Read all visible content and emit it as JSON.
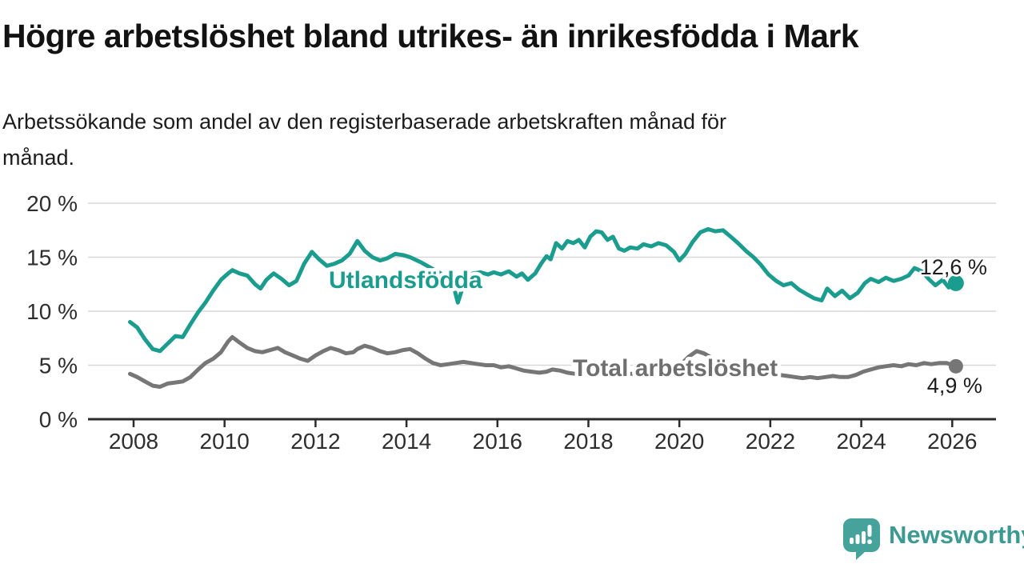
{
  "header": {
    "title": "Högre arbetslöshet bland utrikes- än inrikesfödda i Mark",
    "subtitle": "Arbetssökande som andel av den registerbaserade arbetskraften månad för månad.",
    "subtitle_lines": [
      "Arbetssökande som andel av den registerbaserade arbetskraften månad för",
      "månad."
    ]
  },
  "chart_data": {
    "type": "line",
    "unit": "%",
    "ylim": [
      0,
      20
    ],
    "xlim": [
      2007.5,
      2026.9
    ],
    "grid": "horizontal",
    "legend_position": "inline-labels",
    "y_ticks": [
      {
        "value": 0,
        "label": "0 %"
      },
      {
        "value": 5,
        "label": "5 %"
      },
      {
        "value": 10,
        "label": "10 %"
      },
      {
        "value": 15,
        "label": "15 %"
      },
      {
        "value": 20,
        "label": "20 %"
      }
    ],
    "x_ticks": [
      {
        "value": 2008,
        "label": "2008"
      },
      {
        "value": 2010,
        "label": "2010"
      },
      {
        "value": 2012,
        "label": "2012"
      },
      {
        "value": 2014,
        "label": "2014"
      },
      {
        "value": 2016,
        "label": "2016"
      },
      {
        "value": 2018,
        "label": "2018"
      },
      {
        "value": 2020,
        "label": "2020"
      },
      {
        "value": 2022,
        "label": "2022"
      },
      {
        "value": 2024,
        "label": "2024"
      },
      {
        "value": 2026,
        "label": "2026"
      }
    ],
    "series": [
      {
        "key": "utlandsfodda",
        "name": "Utlandsfödda",
        "color": "#1a9c8e",
        "end_label": "12,6 %",
        "end_value": 12.6,
        "points": [
          [
            2007.92,
            9.0
          ],
          [
            2008.08,
            8.5
          ],
          [
            2008.25,
            7.4
          ],
          [
            2008.42,
            6.5
          ],
          [
            2008.58,
            6.3
          ],
          [
            2008.75,
            7.0
          ],
          [
            2008.92,
            7.7
          ],
          [
            2009.08,
            7.6
          ],
          [
            2009.25,
            8.8
          ],
          [
            2009.42,
            9.9
          ],
          [
            2009.58,
            10.8
          ],
          [
            2009.75,
            11.9
          ],
          [
            2009.92,
            12.9
          ],
          [
            2010.08,
            13.5
          ],
          [
            2010.17,
            13.8
          ],
          [
            2010.33,
            13.5
          ],
          [
            2010.5,
            13.3
          ],
          [
            2010.67,
            12.5
          ],
          [
            2010.79,
            12.1
          ],
          [
            2010.92,
            12.9
          ],
          [
            2011.08,
            13.5
          ],
          [
            2011.25,
            13.0
          ],
          [
            2011.42,
            12.4
          ],
          [
            2011.58,
            12.8
          ],
          [
            2011.75,
            14.4
          ],
          [
            2011.92,
            15.5
          ],
          [
            2012.08,
            14.8
          ],
          [
            2012.25,
            14.2
          ],
          [
            2012.42,
            14.4
          ],
          [
            2012.58,
            14.7
          ],
          [
            2012.75,
            15.3
          ],
          [
            2012.92,
            16.5
          ],
          [
            2013.08,
            15.6
          ],
          [
            2013.25,
            15.0
          ],
          [
            2013.42,
            14.7
          ],
          [
            2013.58,
            14.9
          ],
          [
            2013.75,
            15.3
          ],
          [
            2013.92,
            15.2
          ],
          [
            2014.08,
            15.0
          ],
          [
            2014.33,
            14.5
          ],
          [
            2014.58,
            13.9
          ],
          [
            2014.83,
            13.3
          ],
          [
            2015.0,
            12.9
          ],
          [
            2015.13,
            10.8
          ],
          [
            2015.29,
            12.9
          ],
          [
            2015.46,
            13.5
          ],
          [
            2015.63,
            13.6
          ],
          [
            2015.79,
            13.4
          ],
          [
            2015.92,
            13.6
          ],
          [
            2016.08,
            13.4
          ],
          [
            2016.25,
            13.7
          ],
          [
            2016.42,
            13.2
          ],
          [
            2016.54,
            13.5
          ],
          [
            2016.67,
            12.9
          ],
          [
            2016.83,
            13.5
          ],
          [
            2016.96,
            14.4
          ],
          [
            2017.08,
            15.1
          ],
          [
            2017.17,
            14.8
          ],
          [
            2017.29,
            16.3
          ],
          [
            2017.42,
            15.8
          ],
          [
            2017.54,
            16.5
          ],
          [
            2017.67,
            16.3
          ],
          [
            2017.79,
            16.6
          ],
          [
            2017.92,
            15.9
          ],
          [
            2018.04,
            16.9
          ],
          [
            2018.17,
            17.4
          ],
          [
            2018.29,
            17.3
          ],
          [
            2018.42,
            16.6
          ],
          [
            2018.54,
            16.9
          ],
          [
            2018.67,
            15.8
          ],
          [
            2018.79,
            15.6
          ],
          [
            2018.92,
            15.9
          ],
          [
            2019.08,
            15.8
          ],
          [
            2019.21,
            16.2
          ],
          [
            2019.38,
            16.0
          ],
          [
            2019.54,
            16.3
          ],
          [
            2019.71,
            16.1
          ],
          [
            2019.88,
            15.5
          ],
          [
            2020.0,
            14.7
          ],
          [
            2020.13,
            15.3
          ],
          [
            2020.29,
            16.4
          ],
          [
            2020.46,
            17.3
          ],
          [
            2020.63,
            17.6
          ],
          [
            2020.79,
            17.4
          ],
          [
            2020.96,
            17.5
          ],
          [
            2021.13,
            16.9
          ],
          [
            2021.29,
            16.3
          ],
          [
            2021.46,
            15.6
          ],
          [
            2021.63,
            15.0
          ],
          [
            2021.79,
            14.3
          ],
          [
            2021.96,
            13.4
          ],
          [
            2022.13,
            12.8
          ],
          [
            2022.29,
            12.4
          ],
          [
            2022.46,
            12.6
          ],
          [
            2022.63,
            12.0
          ],
          [
            2022.79,
            11.6
          ],
          [
            2022.96,
            11.2
          ],
          [
            2023.13,
            11.0
          ],
          [
            2023.25,
            12.1
          ],
          [
            2023.42,
            11.4
          ],
          [
            2023.58,
            11.9
          ],
          [
            2023.75,
            11.2
          ],
          [
            2023.92,
            11.7
          ],
          [
            2024.08,
            12.6
          ],
          [
            2024.21,
            13.0
          ],
          [
            2024.38,
            12.7
          ],
          [
            2024.54,
            13.1
          ],
          [
            2024.71,
            12.8
          ],
          [
            2024.88,
            13.0
          ],
          [
            2025.04,
            13.3
          ],
          [
            2025.17,
            14.0
          ],
          [
            2025.33,
            13.7
          ],
          [
            2025.5,
            12.9
          ],
          [
            2025.63,
            12.4
          ],
          [
            2025.79,
            12.9
          ],
          [
            2025.92,
            12.2
          ],
          [
            2026.08,
            12.6
          ]
        ]
      },
      {
        "key": "total-arbetsloshet",
        "name": "Total arbetslöshet",
        "color": "#767676",
        "label_color": "#6f6f6f",
        "end_label": "4,9 %",
        "end_value": 4.9,
        "points": [
          [
            2007.92,
            4.2
          ],
          [
            2008.08,
            3.9
          ],
          [
            2008.25,
            3.5
          ],
          [
            2008.42,
            3.1
          ],
          [
            2008.58,
            3.0
          ],
          [
            2008.75,
            3.3
          ],
          [
            2008.92,
            3.4
          ],
          [
            2009.08,
            3.5
          ],
          [
            2009.25,
            3.9
          ],
          [
            2009.42,
            4.6
          ],
          [
            2009.58,
            5.2
          ],
          [
            2009.75,
            5.6
          ],
          [
            2009.92,
            6.2
          ],
          [
            2010.08,
            7.2
          ],
          [
            2010.17,
            7.6
          ],
          [
            2010.33,
            7.1
          ],
          [
            2010.5,
            6.6
          ],
          [
            2010.67,
            6.3
          ],
          [
            2010.83,
            6.2
          ],
          [
            2011.0,
            6.4
          ],
          [
            2011.17,
            6.6
          ],
          [
            2011.33,
            6.2
          ],
          [
            2011.5,
            5.9
          ],
          [
            2011.67,
            5.6
          ],
          [
            2011.83,
            5.4
          ],
          [
            2012.0,
            5.9
          ],
          [
            2012.17,
            6.3
          ],
          [
            2012.33,
            6.6
          ],
          [
            2012.5,
            6.4
          ],
          [
            2012.67,
            6.1
          ],
          [
            2012.83,
            6.2
          ],
          [
            2012.92,
            6.5
          ],
          [
            2013.08,
            6.8
          ],
          [
            2013.25,
            6.6
          ],
          [
            2013.42,
            6.3
          ],
          [
            2013.58,
            6.1
          ],
          [
            2013.75,
            6.2
          ],
          [
            2013.92,
            6.4
          ],
          [
            2014.08,
            6.5
          ],
          [
            2014.25,
            6.1
          ],
          [
            2014.42,
            5.6
          ],
          [
            2014.58,
            5.2
          ],
          [
            2014.75,
            5.0
          ],
          [
            2014.92,
            5.1
          ],
          [
            2015.08,
            5.2
          ],
          [
            2015.25,
            5.3
          ],
          [
            2015.42,
            5.2
          ],
          [
            2015.58,
            5.1
          ],
          [
            2015.75,
            5.0
          ],
          [
            2015.92,
            5.0
          ],
          [
            2016.08,
            4.8
          ],
          [
            2016.25,
            4.9
          ],
          [
            2016.42,
            4.7
          ],
          [
            2016.58,
            4.5
          ],
          [
            2016.75,
            4.4
          ],
          [
            2016.92,
            4.3
          ],
          [
            2017.08,
            4.4
          ],
          [
            2017.21,
            4.6
          ],
          [
            2017.38,
            4.5
          ],
          [
            2017.54,
            4.3
          ],
          [
            2017.71,
            4.2
          ],
          [
            2017.88,
            4.2
          ],
          [
            2018.04,
            4.2
          ],
          [
            2018.21,
            4.3
          ],
          [
            2018.38,
            4.2
          ],
          [
            2018.54,
            4.1
          ],
          [
            2018.71,
            4.1
          ],
          [
            2018.88,
            4.2
          ],
          [
            2019.04,
            4.2
          ],
          [
            2019.21,
            4.3
          ],
          [
            2019.38,
            4.3
          ],
          [
            2019.54,
            4.4
          ],
          [
            2019.71,
            4.4
          ],
          [
            2019.88,
            4.6
          ],
          [
            2020.04,
            5.1
          ],
          [
            2020.21,
            5.8
          ],
          [
            2020.38,
            6.3
          ],
          [
            2020.54,
            6.1
          ],
          [
            2020.71,
            5.7
          ],
          [
            2020.88,
            5.4
          ],
          [
            2021.04,
            5.1
          ],
          [
            2021.21,
            4.9
          ],
          [
            2021.38,
            4.7
          ],
          [
            2021.54,
            4.6
          ],
          [
            2021.71,
            4.4
          ],
          [
            2021.88,
            4.3
          ],
          [
            2022.04,
            4.2
          ],
          [
            2022.21,
            4.1
          ],
          [
            2022.38,
            4.0
          ],
          [
            2022.54,
            3.9
          ],
          [
            2022.71,
            3.8
          ],
          [
            2022.88,
            3.9
          ],
          [
            2023.04,
            3.8
          ],
          [
            2023.21,
            3.9
          ],
          [
            2023.38,
            4.0
          ],
          [
            2023.54,
            3.9
          ],
          [
            2023.71,
            3.9
          ],
          [
            2023.88,
            4.1
          ],
          [
            2024.04,
            4.4
          ],
          [
            2024.21,
            4.6
          ],
          [
            2024.38,
            4.8
          ],
          [
            2024.54,
            4.9
          ],
          [
            2024.71,
            5.0
          ],
          [
            2024.88,
            4.9
          ],
          [
            2025.04,
            5.1
          ],
          [
            2025.21,
            5.0
          ],
          [
            2025.38,
            5.2
          ],
          [
            2025.54,
            5.1
          ],
          [
            2025.71,
            5.2
          ],
          [
            2025.88,
            5.2
          ],
          [
            2026.08,
            4.9
          ]
        ]
      }
    ]
  },
  "footer": {
    "brand": "Newsworthy",
    "brand_color": "#3d9a93",
    "logo_color": "#46a39b"
  },
  "colors": {
    "accent_teal": "#1a9c8e",
    "series_gray": "#767676",
    "grid": "#d8d8d8",
    "axis": "#2b2b2b",
    "text": "#121212"
  }
}
